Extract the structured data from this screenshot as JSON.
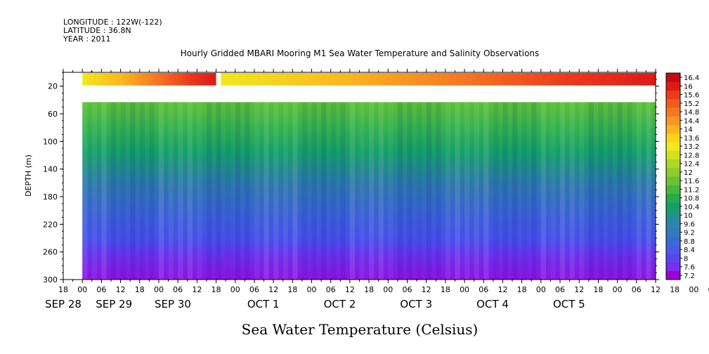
{
  "header": {
    "longitude": "LONGITUDE : 122W(-122)",
    "latitude": "LATITUDE : 36.8N",
    "year": "YEAR : 2011"
  },
  "chart_data": {
    "type": "heatmap",
    "title": "Hourly Gridded MBARI Mooring M1 Sea Water Temperature and Salinity Observations",
    "xlabel": "Sea Water Temperature (Celsius)",
    "ylabel": "DEPTH (m)",
    "y_range": [
      0,
      300
    ],
    "y_ticks": [
      "20",
      "60",
      "100",
      "140",
      "180",
      "220",
      "260",
      "300"
    ],
    "x_hour_ticks": [
      "18",
      "00",
      "06",
      "12",
      "18",
      "00",
      "06",
      "12",
      "18",
      "00",
      "06",
      "12",
      "18",
      "00",
      "06",
      "12",
      "18",
      "00",
      "06",
      "12",
      "18",
      "00",
      "06",
      "12",
      "18",
      "00",
      "06",
      "12",
      "18",
      "00",
      "06",
      "12",
      "18",
      "00",
      "06",
      "12"
    ],
    "x_day_labels": [
      "SEP 28",
      "SEP 29",
      "SEP 30",
      "OCT 1",
      "OCT 2",
      "OCT 3",
      "OCT 4",
      "OCT 5"
    ],
    "colorbar_ticks": [
      "16.4",
      "16",
      "15.6",
      "15.2",
      "14.8",
      "14.4",
      "14",
      "13.6",
      "13.2",
      "12.8",
      "12.4",
      "12",
      "11.6",
      "11.2",
      "10.8",
      "10.4",
      "10",
      "9.6",
      "9.2",
      "8.8",
      "8.4",
      "8",
      "7.6",
      "7.2"
    ],
    "colorbar_colors": [
      "#9a00d8",
      "#7a2cf0",
      "#5a44f0",
      "#4a5ae6",
      "#3a6ad6",
      "#3478c0",
      "#2c86aa",
      "#1e948a",
      "#14a068",
      "#24ac4c",
      "#48b83a",
      "#6cc234",
      "#8ccc2c",
      "#b0d626",
      "#d2e020",
      "#f0e81c",
      "#fed41c",
      "#fcb420",
      "#fa9622",
      "#f67822",
      "#f25a20",
      "#ec3a1c",
      "#de1a16",
      "#c40a10"
    ],
    "depth_levels": [
      10,
      40,
      60,
      80,
      100,
      120,
      140,
      160,
      180,
      200,
      220,
      240,
      260,
      280,
      300
    ],
    "time_hours_from_sep28_18": [
      0,
      6,
      24,
      48,
      72,
      96,
      120,
      144,
      168,
      186
    ],
    "temperature_profile_c": [
      13.4,
      11.4,
      11.0,
      10.6,
      10.3,
      10.0,
      9.7,
      9.5,
      9.2,
      9.0,
      8.8,
      8.5,
      8.2,
      7.9,
      7.6
    ],
    "surface_temperature_by_time_c": [
      null,
      13.3,
      13.5,
      13.9,
      14.4,
      14.8,
      15.3,
      15.8,
      16.1,
      16.3
    ],
    "data_start_hour": 6,
    "surface_gap_hours": [
      48,
      49.5
    ],
    "missing_depth_band_m": [
      20,
      35
    ]
  }
}
